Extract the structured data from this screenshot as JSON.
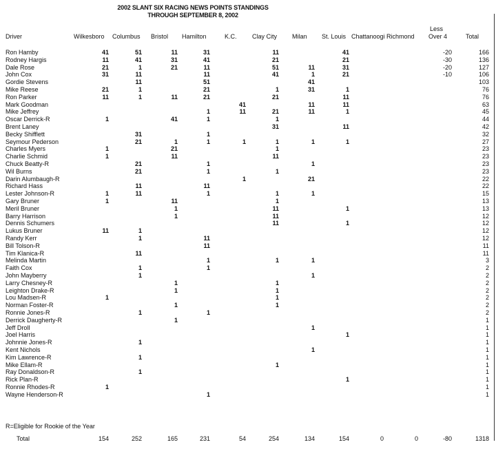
{
  "title": "2002 SLANT SIX RACING NEWS POINTS STANDINGS",
  "subtitle": "THROUGH SEPTEMBER 8, 2002",
  "headers": [
    "Driver",
    "Wilkesboro",
    "Columbus",
    "Bristol",
    "Hamilton",
    "K.C.",
    "Clay City",
    "Milan",
    "St. Louis",
    "Chattanoogi",
    "Richmond",
    "Less Over 4",
    "Total"
  ],
  "less_over_label": [
    "Less",
    "Over 4"
  ],
  "rows": [
    [
      "Ron Hamby",
      "41",
      "51",
      "11",
      "31",
      "",
      "11",
      "",
      "41",
      "",
      "",
      "-20",
      "166"
    ],
    [
      "Rodney Hargis",
      "11",
      "41",
      "31",
      "41",
      "",
      "21",
      "",
      "21",
      "",
      "",
      "-30",
      "136"
    ],
    [
      "Dale Rose",
      "21",
      "1",
      "21",
      "11",
      "",
      "51",
      "11",
      "31",
      "",
      "",
      "-20",
      "127"
    ],
    [
      "John Cox",
      "31",
      "11",
      "",
      "11",
      "",
      "41",
      "1",
      "21",
      "",
      "",
      "-10",
      "106"
    ],
    [
      "Gordie Stevens",
      "",
      "11",
      "",
      "51",
      "",
      "",
      "41",
      "",
      "",
      "",
      "",
      "103"
    ],
    [
      "Mike Reese",
      "21",
      "1",
      "",
      "21",
      "",
      "1",
      "31",
      "1",
      "",
      "",
      "",
      "76"
    ],
    [
      "Ron Parker",
      "11",
      "1",
      "11",
      "21",
      "",
      "21",
      "",
      "11",
      "",
      "",
      "",
      "76"
    ],
    [
      "Mark Goodman",
      "",
      "",
      "",
      "",
      "41",
      "",
      "11",
      "11",
      "",
      "",
      "",
      "63"
    ],
    [
      "Mike Jeffrey",
      "",
      "",
      "",
      "1",
      "11",
      "21",
      "11",
      "1",
      "",
      "",
      "",
      "45"
    ],
    [
      "Oscar Derrick-R",
      "1",
      "",
      "41",
      "1",
      "",
      "1",
      "",
      "",
      "",
      "",
      "",
      "44"
    ],
    [
      "Brent Laney",
      "",
      "",
      "",
      "",
      "",
      "31",
      "",
      "11",
      "",
      "",
      "",
      "42"
    ],
    [
      "Becky Shifflett",
      "",
      "31",
      "",
      "1",
      "",
      "",
      "",
      "",
      "",
      "",
      "",
      "32"
    ],
    [
      "Seymour Pederson",
      "",
      "21",
      "1",
      "1",
      "1",
      "1",
      "1",
      "1",
      "",
      "",
      "",
      "27"
    ],
    [
      "Charles Myers",
      "1",
      "",
      "21",
      "",
      "",
      "1",
      "",
      "",
      "",
      "",
      "",
      "23"
    ],
    [
      "Charlie Schmid",
      "1",
      "",
      "11",
      "",
      "",
      "11",
      "",
      "",
      "",
      "",
      "",
      "23"
    ],
    [
      "Chuck Beatty-R",
      "",
      "21",
      "",
      "1",
      "",
      "",
      "1",
      "",
      "",
      "",
      "",
      "23"
    ],
    [
      "Wil Burns",
      "",
      "21",
      "",
      "1",
      "",
      "1",
      "",
      "",
      "",
      "",
      "",
      "23"
    ],
    [
      "Darin Alumbaugh-R",
      "",
      "",
      "",
      "",
      "1",
      "",
      "21",
      "",
      "",
      "",
      "",
      "22"
    ],
    [
      "Richard Hass",
      "",
      "11",
      "",
      "11",
      "",
      "",
      "",
      "",
      "",
      "",
      "",
      "22"
    ],
    [
      "Lester Johnson-R",
      "1",
      "11",
      "",
      "1",
      "",
      "1",
      "1",
      "",
      "",
      "",
      "",
      "15"
    ],
    [
      "Gary Bruner",
      "1",
      "",
      "11",
      "",
      "",
      "1",
      "",
      "",
      "",
      "",
      "",
      "13"
    ],
    [
      "Meril Bruner",
      "",
      "",
      "1",
      "",
      "",
      "11",
      "",
      "1",
      "",
      "",
      "",
      "13"
    ],
    [
      "Barry Harrison",
      "",
      "",
      "1",
      "",
      "",
      "11",
      "",
      "",
      "",
      "",
      "",
      "12"
    ],
    [
      "Dennis Schumers",
      "",
      "",
      "",
      "",
      "",
      "11",
      "",
      "1",
      "",
      "",
      "",
      "12"
    ],
    [
      "Lukus Bruner",
      "11",
      "1",
      "",
      "",
      "",
      "",
      "",
      "",
      "",
      "",
      "",
      "12"
    ],
    [
      "Randy Kerr",
      "",
      "1",
      "",
      "11",
      "",
      "",
      "",
      "",
      "",
      "",
      "",
      "12"
    ],
    [
      "Bill Tolson-R",
      "",
      "",
      "",
      "11",
      "",
      "",
      "",
      "",
      "",
      "",
      "",
      "11"
    ],
    [
      "Tim Klanica-R",
      "",
      "11",
      "",
      "",
      "",
      "",
      "",
      "",
      "",
      "",
      "",
      "11"
    ],
    [
      "Melinda Martin",
      "",
      "",
      "",
      "1",
      "",
      "1",
      "1",
      "",
      "",
      "",
      "",
      "3"
    ],
    [
      "Faith Cox",
      "",
      "1",
      "",
      "1",
      "",
      "",
      "",
      "",
      "",
      "",
      "",
      "2"
    ],
    [
      "John Mayberry",
      "",
      "1",
      "",
      "",
      "",
      "",
      "1",
      "",
      "",
      "",
      "",
      "2"
    ],
    [
      "Larry Chesney-R",
      "",
      "",
      "1",
      "",
      "",
      "1",
      "",
      "",
      "",
      "",
      "",
      "2"
    ],
    [
      "Leighton Drake-R",
      "",
      "",
      "1",
      "",
      "",
      "1",
      "",
      "",
      "",
      "",
      "",
      "2"
    ],
    [
      "Lou Madsen-R",
      "1",
      "",
      "",
      "",
      "",
      "1",
      "",
      "",
      "",
      "",
      "",
      "2"
    ],
    [
      "Norman Foster-R",
      "",
      "",
      "1",
      "",
      "",
      "1",
      "",
      "",
      "",
      "",
      "",
      "2"
    ],
    [
      "Ronnie Jones-R",
      "",
      "1",
      "",
      "1",
      "",
      "",
      "",
      "",
      "",
      "",
      "",
      "2"
    ],
    [
      "Derrick Daugherty-R",
      "",
      "",
      "1",
      "",
      "",
      "",
      "",
      "",
      "",
      "",
      "",
      "1"
    ],
    [
      "Jeff Droll",
      "",
      "",
      "",
      "",
      "",
      "",
      "1",
      "",
      "",
      "",
      "",
      "1"
    ],
    [
      "Joel Harris",
      "",
      "",
      "",
      "",
      "",
      "",
      "",
      "1",
      "",
      "",
      "",
      "1"
    ],
    [
      "Johnnie Jones-R",
      "",
      "1",
      "",
      "",
      "",
      "",
      "",
      "",
      "",
      "",
      "",
      "1"
    ],
    [
      "Kent Nichols",
      "",
      "",
      "",
      "",
      "",
      "",
      "1",
      "",
      "",
      "",
      "",
      "1"
    ],
    [
      "Kim Lawrence-R",
      "",
      "1",
      "",
      "",
      "",
      "",
      "",
      "",
      "",
      "",
      "",
      "1"
    ],
    [
      "Mike Ellam-R",
      "",
      "",
      "",
      "",
      "",
      "1",
      "",
      "",
      "",
      "",
      "",
      "1"
    ],
    [
      "Ray Donaldson-R",
      "",
      "1",
      "",
      "",
      "",
      "",
      "",
      "",
      "",
      "",
      "",
      "1"
    ],
    [
      "Rick Plan-R",
      "",
      "",
      "",
      "",
      "",
      "",
      "",
      "1",
      "",
      "",
      "",
      "1"
    ],
    [
      "Ronnie Rhodes-R",
      "1",
      "",
      "",
      "",
      "",
      "",
      "",
      "",
      "",
      "",
      "",
      "1"
    ],
    [
      "Wayne Henderson-R",
      "",
      "",
      "",
      "1",
      "",
      "",
      "",
      "",
      "",
      "",
      "",
      "1"
    ]
  ],
  "note": "R=Eligible for Rookie of the Year",
  "totals": [
    "Total",
    "154",
    "252",
    "165",
    "231",
    "54",
    "254",
    "134",
    "154",
    "0",
    "0",
    "-80",
    "1318"
  ]
}
